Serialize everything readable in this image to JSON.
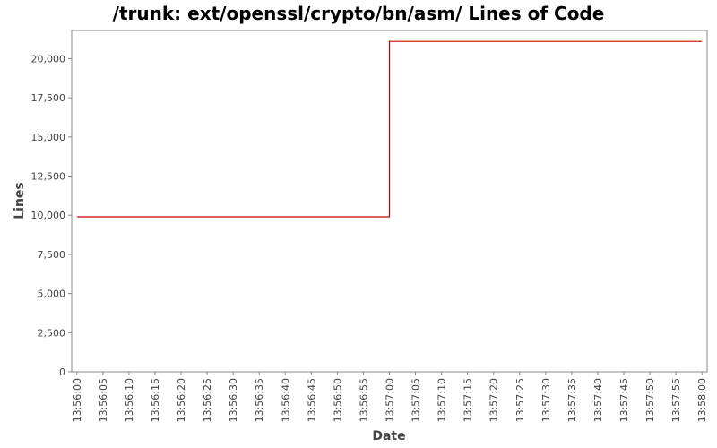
{
  "chart_data": {
    "type": "line",
    "step": true,
    "title": "/trunk: ext/openssl/crypto/bn/asm/ Lines of Code",
    "xlabel": "Date",
    "ylabel": "Lines",
    "x_ticks": [
      "13:56:00",
      "13:56:05",
      "13:56:10",
      "13:56:15",
      "13:56:20",
      "13:56:25",
      "13:56:30",
      "13:56:35",
      "13:56:40",
      "13:56:45",
      "13:56:50",
      "13:56:55",
      "13:57:00",
      "13:57:05",
      "13:57:10",
      "13:57:15",
      "13:57:20",
      "13:57:25",
      "13:57:30",
      "13:57:35",
      "13:57:40",
      "13:57:45",
      "13:57:50",
      "13:57:55",
      "13:58:00"
    ],
    "y_ticks": [
      0,
      2500,
      5000,
      7500,
      10000,
      12500,
      15000,
      17500,
      20000
    ],
    "y_tick_labels": [
      "0",
      "2,500",
      "5,000",
      "7,500",
      "10,000",
      "12,500",
      "15,000",
      "17,500",
      "20,000"
    ],
    "xlim": [
      "13:55:59",
      "13:58:01"
    ],
    "ylim": [
      0,
      21800
    ],
    "grid": false,
    "series": [
      {
        "color": "#cc0000",
        "points": [
          {
            "x": "13:56:00",
            "y": 9900
          },
          {
            "x": "13:57:00",
            "y": 9900
          },
          {
            "x": "13:57:00",
            "y": 21100
          },
          {
            "x": "13:58:00",
            "y": 21100
          }
        ]
      }
    ]
  }
}
